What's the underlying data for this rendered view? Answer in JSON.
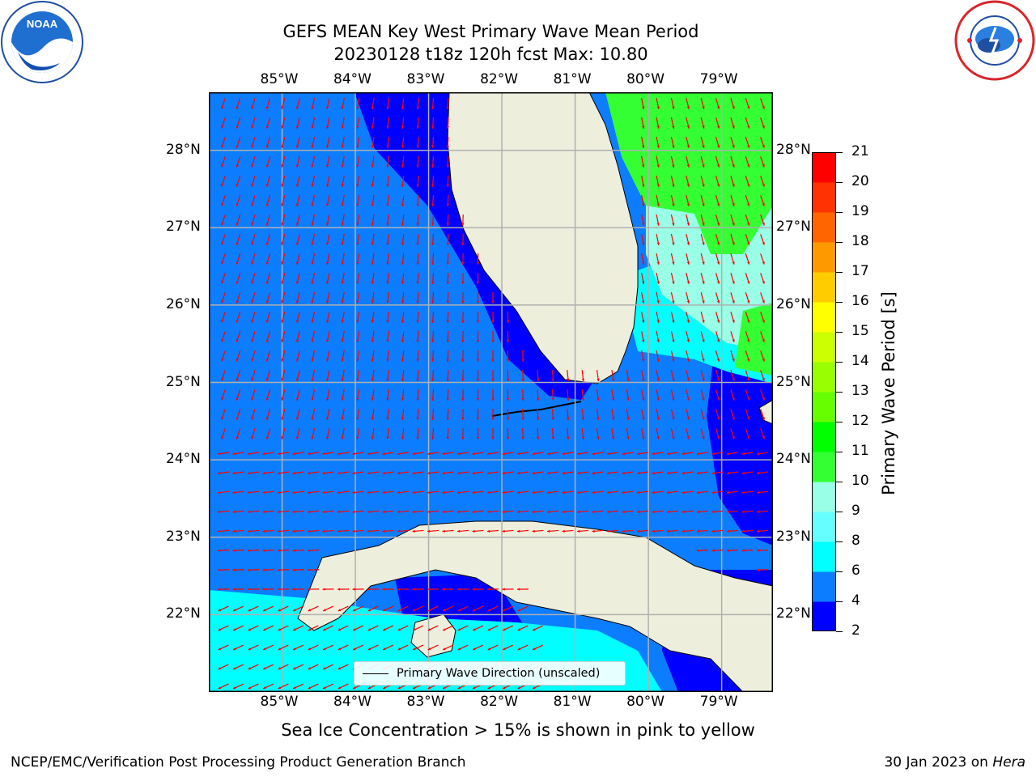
{
  "title": {
    "line1": "GEFS MEAN Key West Primary Wave Mean Period",
    "line2": "20230128 t18z 120h fcst   Max: 10.80"
  },
  "logos": {
    "left": "noaa-logo",
    "right": "national-weather-service-logo"
  },
  "map": {
    "lon_labels": [
      "85°W",
      "84°W",
      "83°W",
      "82°W",
      "81°W",
      "80°W",
      "79°W"
    ],
    "lat_labels": [
      "28°N",
      "27°N",
      "26°N",
      "25°N",
      "24°N",
      "23°N",
      "22°N"
    ],
    "lon_range": [
      -86.0,
      -78.3
    ],
    "lat_range": [
      21.0,
      28.75
    ],
    "land_color": "#eeeedd",
    "arrow_color": "#ff0000",
    "legend_label": "Primary Wave Direction (unscaled)"
  },
  "colorbar": {
    "label": "Primary Wave Period [s]",
    "tick_labels": [
      "2",
      "4",
      "6",
      "8",
      "9",
      "10",
      "11",
      "12",
      "13",
      "14",
      "15",
      "16",
      "17",
      "18",
      "19",
      "20",
      "21"
    ],
    "colors": [
      "#0000ff",
      "#0c7dff",
      "#00ffff",
      "#66ffff",
      "#99ffe6",
      "#33ff33",
      "#00ff00",
      "#66ff00",
      "#99ff00",
      "#ccff00",
      "#ffff00",
      "#ffcc00",
      "#ff9900",
      "#ff6600",
      "#ff3300",
      "#ff0000"
    ]
  },
  "bottom_note": "Sea Ice Concentration > 15% is shown in pink to yellow",
  "footer": {
    "credit": "NCEP/EMC/Verification Post Processing Product Generation Branch",
    "date_prefix": "30 Jan 2023 on",
    "machine": "Hera"
  }
}
